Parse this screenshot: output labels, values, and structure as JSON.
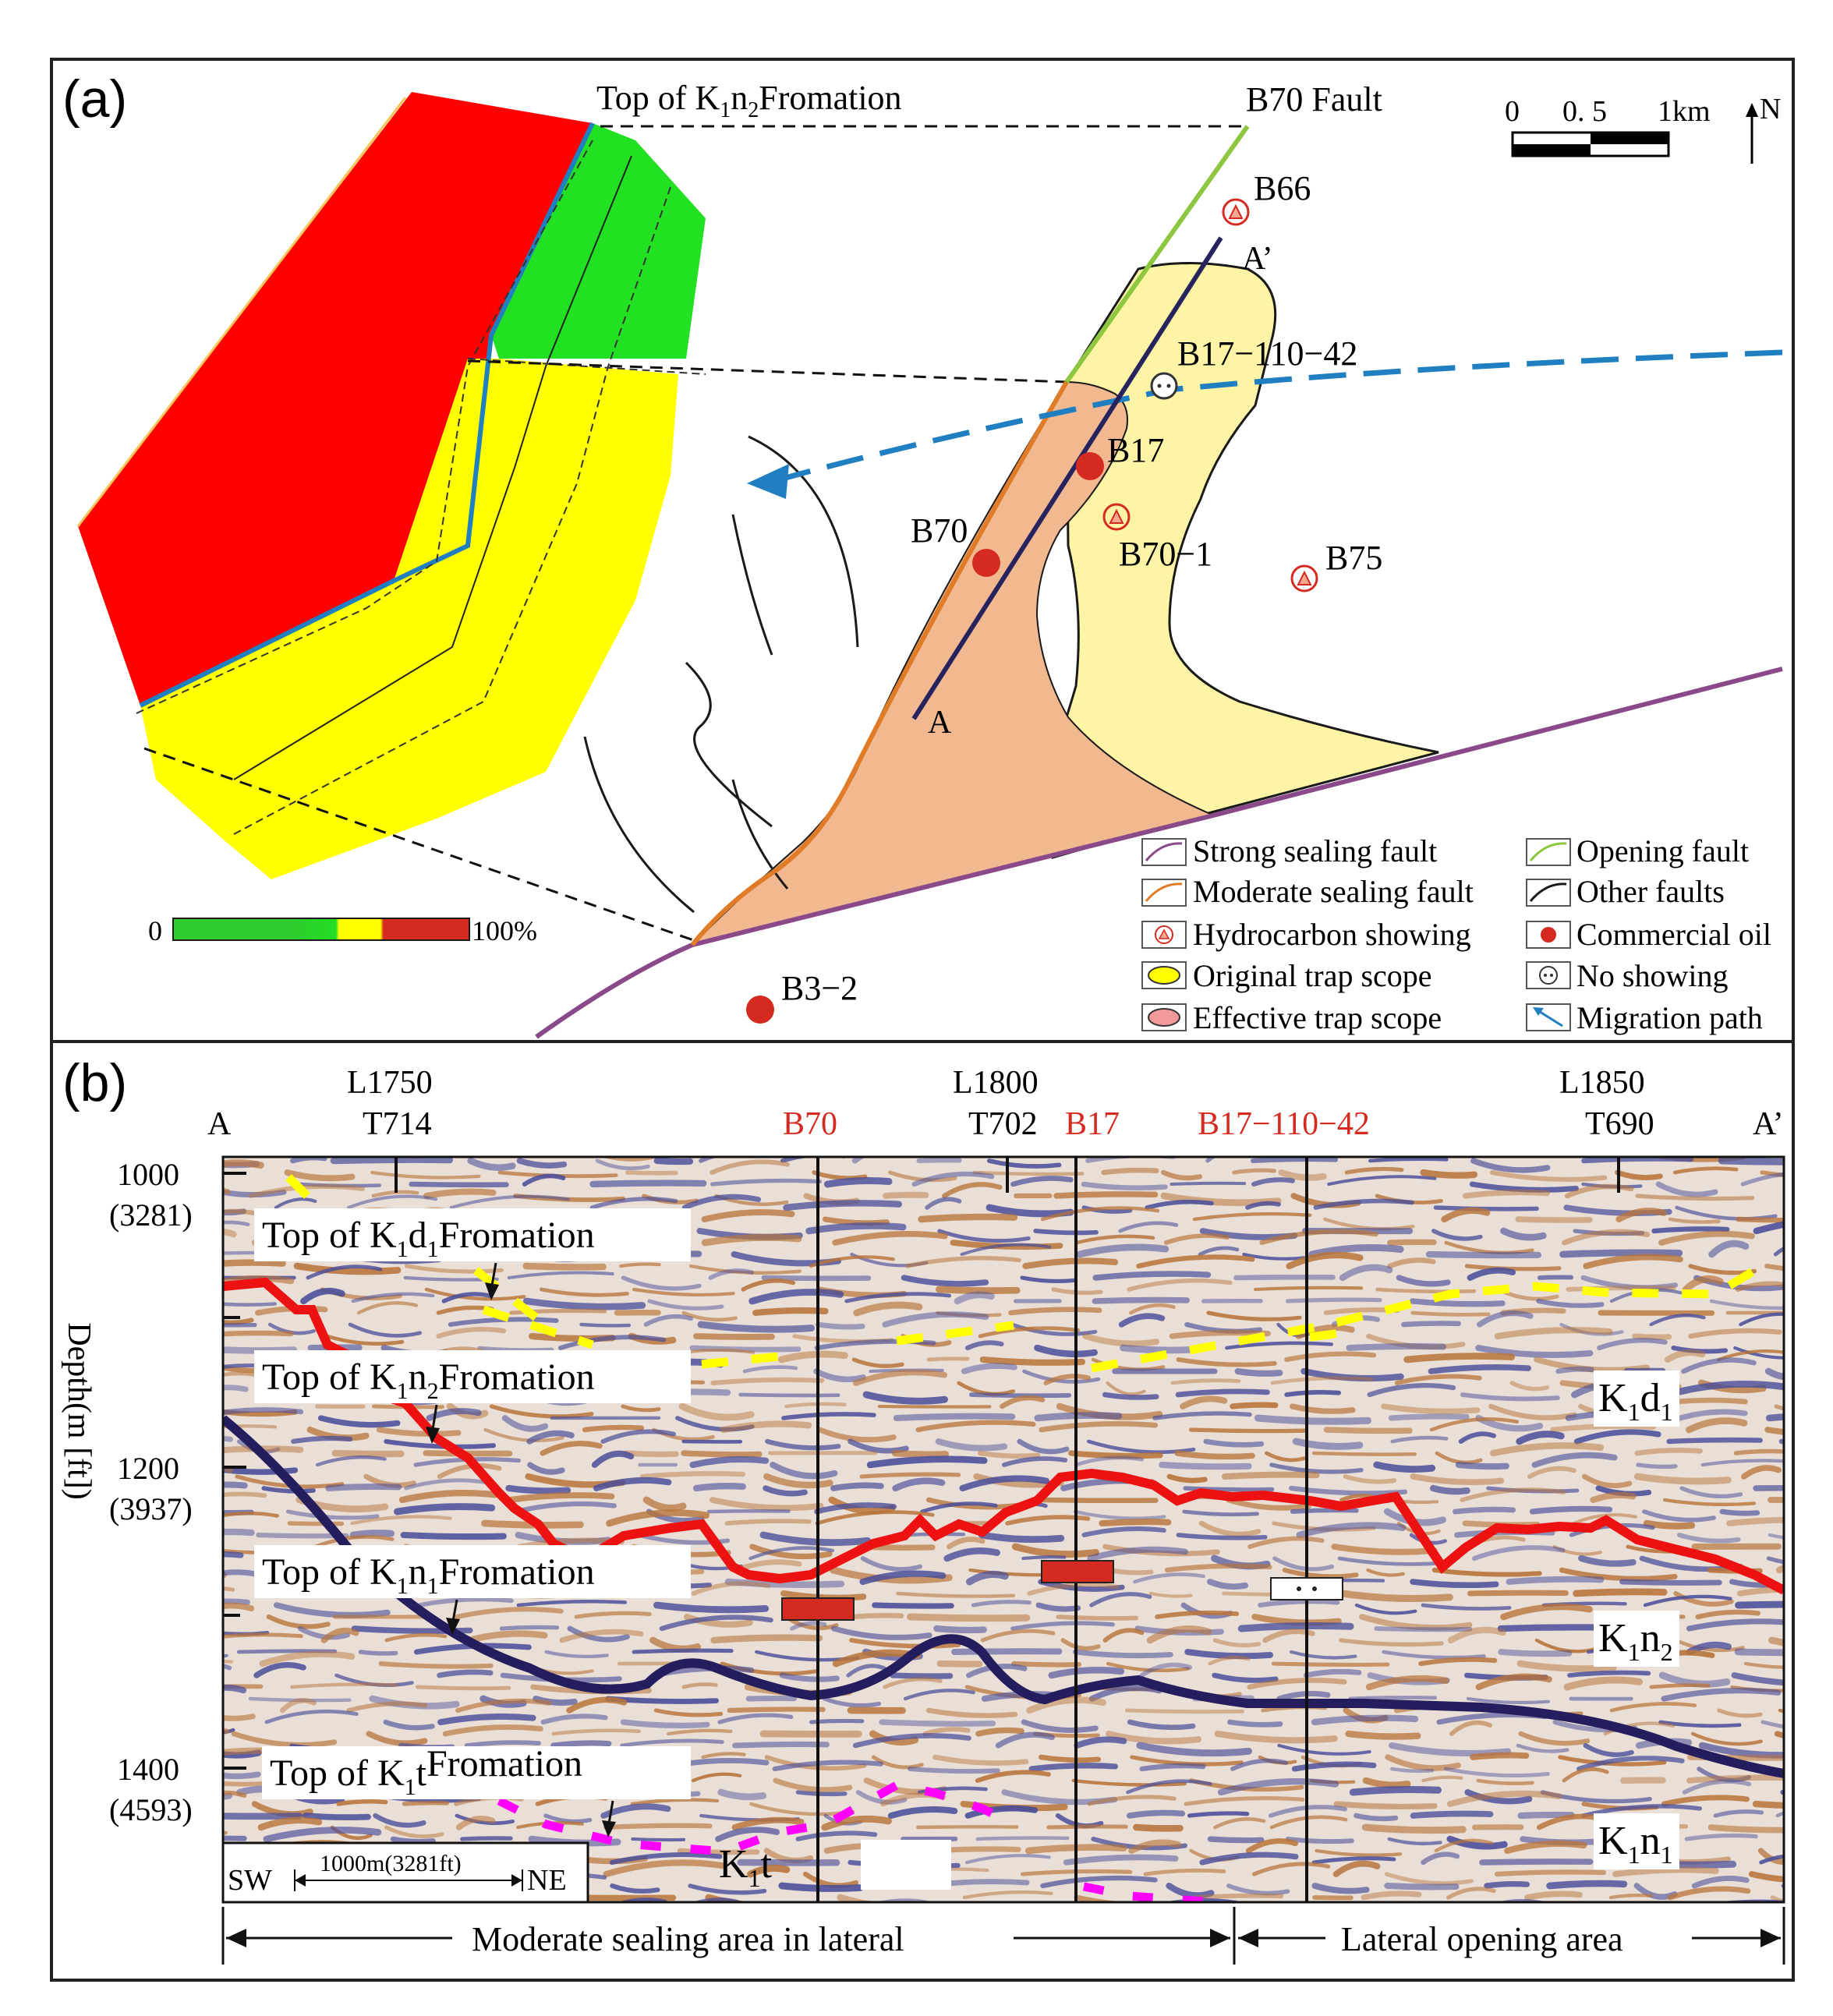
{
  "panel_a": {
    "label": "(a)",
    "top_formation": {
      "pre": "Top  of  K",
      "sub1": "1",
      "mid": "n",
      "sub2": "2",
      "post": "Fromation"
    },
    "fault_name": "B70  Fault",
    "scale_ticks": [
      "0",
      "0. 5",
      "1km"
    ],
    "north": "N",
    "wells": {
      "b66": "B66",
      "b17_110_42": "B17−110−42",
      "b17": "B17",
      "b70": "B70",
      "b70_1": "B70−1",
      "b75": "B75",
      "b3_2": "B3−2"
    },
    "section_a": "A",
    "section_a_prime": "A’",
    "colorbar": {
      "min": "0",
      "max": "100%"
    },
    "legend": {
      "strong_sealing_fault": "Strong sealing fault",
      "opening_fault": "Opening fault",
      "moderate_sealing_fault": "Moderate sealing fault",
      "other_faults": "Other faults",
      "hydrocarbon_showing": "Hydrocarbon showing",
      "commercial_oil": "Commercial oil",
      "original_trap_scope": "Original trap scope",
      "no_showing": "No showing",
      "effective_trap_scope": "Effective trap scope",
      "migration_path": "Migration path"
    },
    "colors": {
      "strong_sealing": "#8a4a8a",
      "opening": "#8dc63f",
      "moderate_sealing": "#e07b27",
      "other": "#1a1a1a",
      "migration": "#1f7fc0",
      "original_trap": "#fdf4a6",
      "effective_trap": "#f2b890",
      "commercial_oil": "#d42a20",
      "section_line": "#27235e"
    }
  },
  "panel_b": {
    "label": "(b)",
    "end_left": "A",
    "end_right": "A’",
    "lines": [
      {
        "line": "L1750",
        "trace": "T714"
      },
      {
        "line": "L1800",
        "trace": "T702"
      },
      {
        "line": "L1850",
        "trace": "T690"
      }
    ],
    "wells": [
      "B70",
      "B17",
      "B17−110−42"
    ],
    "depth_ticks": [
      {
        "m": "1000",
        "ft": "(3281)"
      },
      {
        "m": "1200",
        "ft": "(3937)"
      },
      {
        "m": "1400",
        "ft": "(4593)"
      }
    ],
    "axis_label": "Depth(m [ft])",
    "formation_tops": [
      {
        "pre": "Top  of  K",
        "s1": "1",
        "mid": "d",
        "s2": "1",
        "post": "Fromation"
      },
      {
        "pre": "Top  of  K",
        "s1": "1",
        "mid": "n",
        "s2": "2",
        "post": "Fromation"
      },
      {
        "pre": "Top  of  K",
        "s1": "1",
        "mid": "n",
        "s2": "1",
        "post": "Fromation"
      },
      {
        "pre": "Top  of  K",
        "s1": "1",
        "mid": "t",
        "s2": "",
        "post": "Fromation"
      }
    ],
    "units": [
      {
        "base": "K",
        "s1": "1",
        "mid": "d",
        "s2": "1"
      },
      {
        "base": "K",
        "s1": "1",
        "mid": "n",
        "s2": "2"
      },
      {
        "base": "K",
        "s1": "1",
        "mid": "n",
        "s2": "1"
      },
      {
        "base": "K",
        "s1": "1",
        "mid": "t",
        "s2": ""
      }
    ],
    "scale": {
      "left": "SW",
      "text": "1000m(3281ft)",
      "right": "NE"
    },
    "zones": {
      "left": "Moderate  sealing  area  in  lateral",
      "right": "Lateral  opening  area"
    },
    "colors": {
      "well_text": "#d42a20",
      "kd1_top": "#ffff00",
      "kn2_top": "#ee1111",
      "kn1_top": "#241e5e",
      "kt_top": "#ff00ff",
      "seismic_peak": "#b8743a",
      "seismic_trough": "#4a4e9a"
    }
  }
}
